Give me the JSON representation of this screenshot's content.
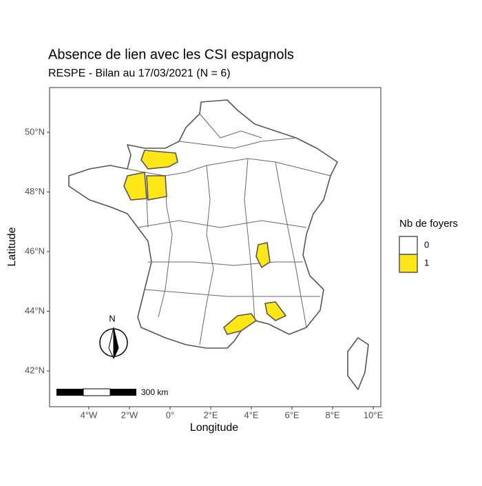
{
  "chart_data": {
    "type": "map",
    "title": "Absence de lien avec les CSI espagnols",
    "subtitle": "RESPE - Bilan au 17/03/2021 (N = 6)",
    "x_label": "Longitude",
    "y_label": "Latitude",
    "xlim": [
      -5.93,
      10.37
    ],
    "ylim": [
      40.8,
      51.5
    ],
    "xticks": [
      {
        "value": -4,
        "label": "4°W"
      },
      {
        "value": -2,
        "label": "2°W"
      },
      {
        "value": 0,
        "label": "0°"
      },
      {
        "value": 2,
        "label": "2°E"
      },
      {
        "value": 4,
        "label": "4°E"
      },
      {
        "value": 6,
        "label": "6°E"
      },
      {
        "value": 8,
        "label": "8°E"
      },
      {
        "value": 10,
        "label": "10°E"
      }
    ],
    "yticks": [
      {
        "value": 42,
        "label": "42°N"
      },
      {
        "value": 44,
        "label": "44°N"
      },
      {
        "value": 46,
        "label": "46°N"
      },
      {
        "value": 48,
        "label": "48°N"
      },
      {
        "value": 50,
        "label": "50°N"
      }
    ],
    "legend": {
      "title": "Nb de foyers",
      "items": [
        {
          "label": "0",
          "color": "#ffffff"
        },
        {
          "label": "1",
          "color": "#ffe617"
        }
      ]
    },
    "scale_bar": "300 km",
    "north_arrow": "N"
  }
}
